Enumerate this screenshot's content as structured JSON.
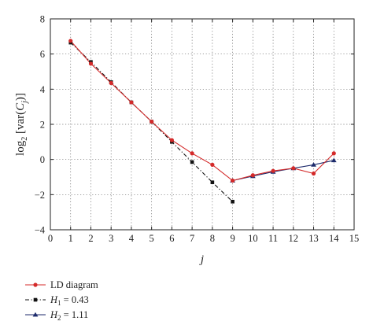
{
  "chart_data": {
    "type": "line",
    "xlabel": "j",
    "ylabel": "log2[var(Cj)]",
    "ylabel_parts": {
      "prefix": "log",
      "sub": "2",
      "open": " [var(",
      "var": "C",
      "var_sub": "j",
      "close": ")]"
    },
    "xlim": [
      0,
      15
    ],
    "ylim": [
      -4,
      8
    ],
    "xticks": [
      "0",
      "1",
      "2",
      "3",
      "4",
      "5",
      "6",
      "7",
      "8",
      "9",
      "10",
      "11",
      "12",
      "13",
      "14",
      "15"
    ],
    "yticks": [
      "−4",
      "−2",
      "0",
      "2",
      "4",
      "6",
      "8"
    ],
    "ytick_values": [
      -4,
      -2,
      0,
      2,
      4,
      6,
      8
    ],
    "grid": true,
    "legend_position": "bottom-left, below plot",
    "series": [
      {
        "name": "LD diagram",
        "legend": {
          "text": "LD diagram"
        },
        "color": "#d42a2a",
        "line_style": "solid",
        "marker": "circle",
        "x": [
          1,
          2,
          3,
          4,
          5,
          6,
          7,
          8,
          9,
          10,
          11,
          12,
          13,
          14
        ],
        "values": [
          6.75,
          5.45,
          4.35,
          3.25,
          2.15,
          1.1,
          0.35,
          -0.3,
          -1.2,
          -0.9,
          -0.65,
          -0.5,
          -0.8,
          0.35
        ]
      },
      {
        "name": "H1 = 0.43",
        "legend": {
          "var": "H",
          "sub": "1",
          "rest": " = 0.43"
        },
        "color": "#111111",
        "line_style": "dashdot",
        "marker": "square",
        "x": [
          1,
          2,
          3,
          4,
          5,
          6,
          7,
          8,
          9
        ],
        "values": [
          6.65,
          5.55,
          4.4,
          3.25,
          2.15,
          1.0,
          -0.15,
          -1.3,
          -2.4
        ]
      },
      {
        "name": "H2 = 1.11",
        "legend": {
          "var": "H",
          "sub": "2",
          "rest": " = 1.11"
        },
        "color": "#1c2a6b",
        "line_style": "solid",
        "marker": "triangle",
        "x": [
          9,
          10,
          11,
          12,
          13,
          14
        ],
        "values": [
          -1.2,
          -0.95,
          -0.7,
          -0.5,
          -0.3,
          -0.05
        ]
      }
    ]
  }
}
